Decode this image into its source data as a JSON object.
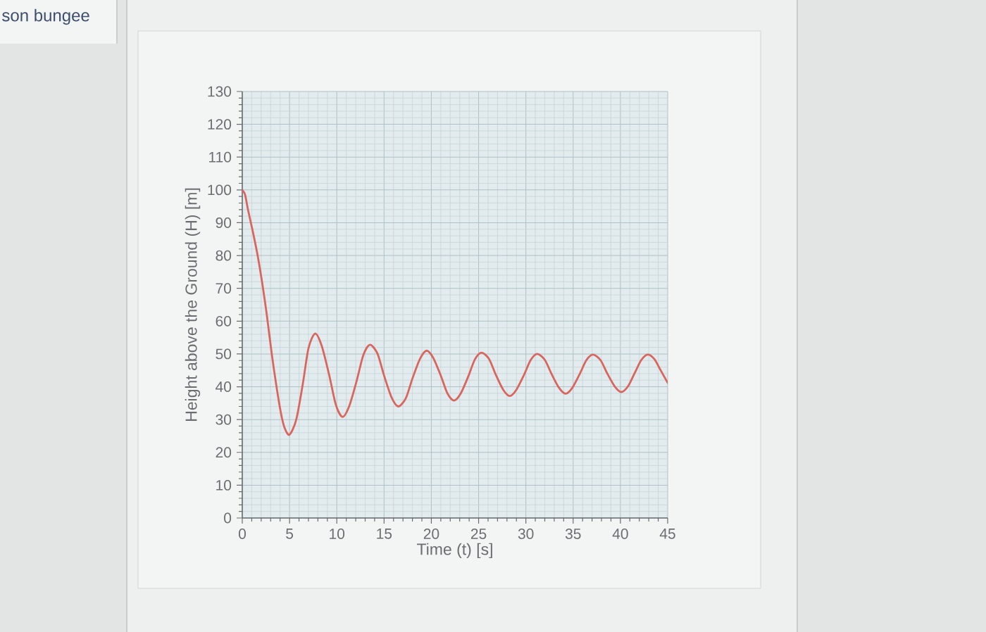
{
  "chart_data": {
    "type": "line",
    "xlabel": "Time (t) [s]",
    "ylabel": "Height above the Ground (H) [m]",
    "annotations": [
      "son bungee"
    ],
    "x": [
      0,
      0.3,
      0.6,
      1.1,
      1.6,
      2.1,
      2.6,
      3.1,
      3.6,
      4.1,
      4.5,
      5.0,
      5.7,
      6.4,
      7.0,
      7.7,
      8.4,
      9.2,
      9.9,
      10.6,
      11.3,
      12.1,
      12.8,
      13.5,
      14.3,
      15.0,
      15.8,
      16.5,
      17.3,
      18.0,
      18.8,
      19.5,
      20.2,
      21.0,
      21.7,
      22.4,
      23.1,
      23.9,
      24.6,
      25.3,
      26.1,
      26.8,
      27.6,
      28.3,
      29.0,
      29.8,
      30.5,
      31.2,
      32.0,
      32.7,
      33.5,
      34.2,
      34.9,
      35.7,
      36.4,
      37.1,
      37.9,
      38.6,
      39.4,
      40.1,
      40.8,
      41.5,
      42.2,
      42.9,
      43.6,
      44.3,
      45.0
    ],
    "values": [
      100,
      98.5,
      94.0,
      87.5,
      80.4,
      71.8,
      61.8,
      50.4,
      40.4,
      31.8,
      27.3,
      25.4,
      29.9,
      40.8,
      51.7,
      56.2,
      52.5,
      43.5,
      34.5,
      30.8,
      34.0,
      41.8,
      49.6,
      52.8,
      50.1,
      43.4,
      36.7,
      34.0,
      36.5,
      42.5,
      48.5,
      51.0,
      48.8,
      43.4,
      38.0,
      35.8,
      37.9,
      43.1,
      48.3,
      50.4,
      48.5,
      43.8,
      39.1,
      37.2,
      39.1,
      43.6,
      48.1,
      50.0,
      48.2,
      44.0,
      39.7,
      37.9,
      39.6,
      43.9,
      48.1,
      49.8,
      48.1,
      44.1,
      40.1,
      38.4,
      40.1,
      44.1,
      48.1,
      49.8,
      48.4,
      44.8,
      41.2
    ],
    "color": "#d9665e",
    "line_style": "solid",
    "xlim": [
      0,
      45
    ],
    "ylim": [
      0,
      130
    ],
    "xticks": [
      0,
      5,
      10,
      15,
      20,
      25,
      30,
      35,
      40,
      45
    ],
    "yticks": [
      0,
      10,
      20,
      30,
      40,
      50,
      60,
      70,
      80,
      90,
      100,
      110,
      120,
      130
    ],
    "grid": true
  }
}
